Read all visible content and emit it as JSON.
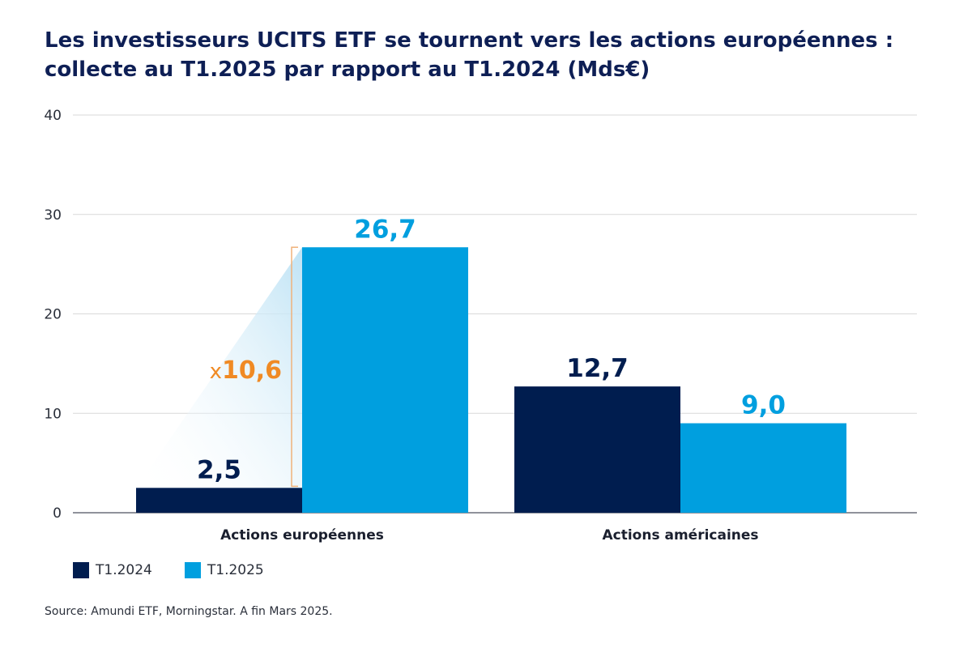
{
  "title_line1": "Les investisseurs UCITS ETF se tournent vers les actions européennes :",
  "title_line2": "collecte au T1.2025 par rapport au T1.2024 (Mds€)",
  "source": "Source: Amundi ETF, Morningstar. A fin Mars 2025.",
  "colors": {
    "title": "#0e1f55",
    "series_2024": "#001d4f",
    "series_2025": "#009fdf",
    "accent": "#f08a24",
    "grid": "#d9d9d9",
    "axis": "#6b6f7a"
  },
  "annotation": {
    "prefix": "x",
    "value": "10,6"
  },
  "chart_data": {
    "type": "bar",
    "title": "Les investisseurs UCITS ETF se tournent vers les actions européennes : collecte au T1.2025 par rapport au T1.2024 (Mds€)",
    "categories": [
      "Actions européennes",
      "Actions américaines"
    ],
    "series": [
      {
        "name": "T1.2024",
        "values": [
          2.5,
          12.7
        ],
        "labels": [
          "2,5",
          "12,7"
        ]
      },
      {
        "name": "T1.2025",
        "values": [
          26.7,
          9.0
        ],
        "labels": [
          "26,7",
          "9,0"
        ]
      }
    ],
    "ylim": [
      0,
      40
    ],
    "yticks": [
      0,
      10,
      20,
      30,
      40
    ],
    "grid": true,
    "legend": "bottom-left",
    "xlabel": "",
    "ylabel": ""
  }
}
